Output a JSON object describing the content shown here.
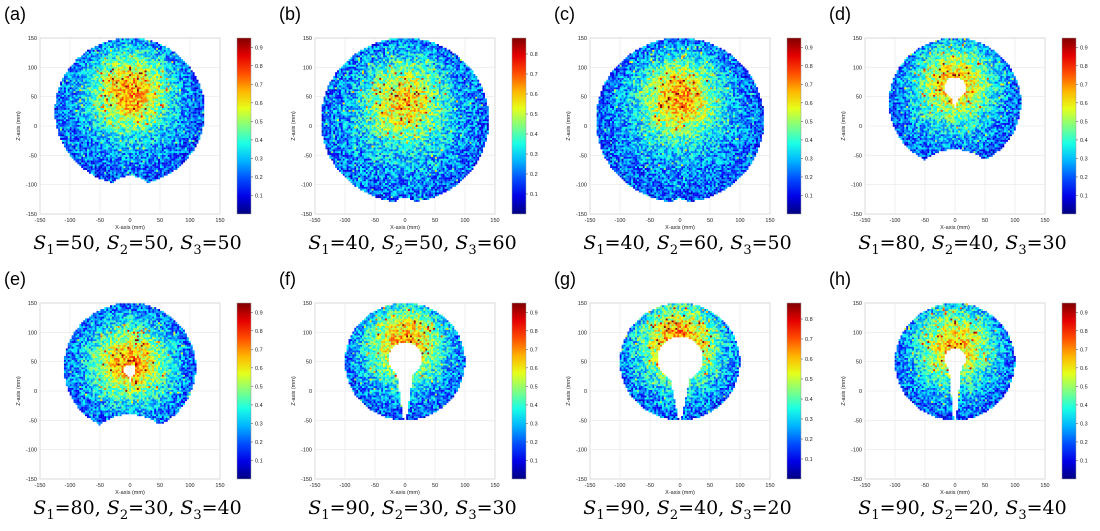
{
  "chart_data": [
    {
      "type": "heatmap",
      "panel": "(a)",
      "xlabel": "X-axis (mm)",
      "ylabel": "Z-axis (mm)",
      "xlim": [
        -150,
        150
      ],
      "ylim": [
        -150,
        150
      ],
      "xticks": [
        "-150",
        "-100",
        "-50",
        "0",
        "50",
        "100",
        "150"
      ],
      "yticks": [
        "150",
        "100",
        "50",
        "0",
        "-50",
        "-100",
        "-150"
      ],
      "colorbar_ticks": [
        "0.9",
        "0.8",
        "0.7",
        "0.6",
        "0.5",
        "0.4",
        "0.3",
        "0.2",
        "0.1"
      ],
      "colorbar_range": [
        0,
        0.95
      ],
      "caption": {
        "s1": "50",
        "s2": "50",
        "s3": "50"
      },
      "shape": {
        "outer_radius_mm": 125,
        "outer_center_z_mm": 25,
        "bottom_notch_mm": 15,
        "hole_radius_mm": 0,
        "hole_center_z_mm": 0,
        "slit": false
      },
      "hotspot": {
        "x_mm": 0,
        "z_mm": 65,
        "intensity": 0.85
      }
    },
    {
      "type": "heatmap",
      "panel": "(b)",
      "xlabel": "X-axis (mm)",
      "ylabel": "Z-axis (mm)",
      "xlim": [
        -150,
        150
      ],
      "ylim": [
        -150,
        150
      ],
      "xticks": [
        "-150",
        "-100",
        "-50",
        "0",
        "50",
        "100",
        "150"
      ],
      "yticks": [
        "150",
        "100",
        "50",
        "0",
        "-50",
        "-100",
        "-150"
      ],
      "colorbar_ticks": [
        "0.8",
        "0.7",
        "0.6",
        "0.5",
        "0.4",
        "0.3",
        "0.2",
        "0.1"
      ],
      "colorbar_range": [
        0,
        0.88
      ],
      "caption": {
        "s1": "40",
        "s2": "50",
        "s3": "60"
      },
      "shape": {
        "outer_radius_mm": 140,
        "outer_center_z_mm": 10,
        "bottom_notch_mm": 8,
        "hole_radius_mm": 0,
        "hole_center_z_mm": 0,
        "slit": false
      },
      "hotspot": {
        "x_mm": 0,
        "z_mm": 50,
        "intensity": 0.7
      }
    },
    {
      "type": "heatmap",
      "panel": "(c)",
      "xlabel": "X-axis (mm)",
      "ylabel": "Z-axis (mm)",
      "xlim": [
        -150,
        150
      ],
      "ylim": [
        -150,
        150
      ],
      "xticks": [
        "-150",
        "-100",
        "-50",
        "0",
        "50",
        "100",
        "150"
      ],
      "yticks": [
        "150",
        "100",
        "50",
        "0",
        "-50",
        "-100",
        "-150"
      ],
      "colorbar_ticks": [
        "0.9",
        "0.8",
        "0.7",
        "0.6",
        "0.5",
        "0.4",
        "0.3",
        "0.2",
        "0.1"
      ],
      "colorbar_range": [
        0,
        0.95
      ],
      "caption": {
        "s1": "40",
        "s2": "60",
        "s3": "50"
      },
      "shape": {
        "outer_radius_mm": 140,
        "outer_center_z_mm": 10,
        "bottom_notch_mm": 6,
        "hole_radius_mm": 0,
        "hole_center_z_mm": 0,
        "slit": false
      },
      "hotspot": {
        "x_mm": 0,
        "z_mm": 55,
        "intensity": 0.85
      }
    },
    {
      "type": "heatmap",
      "panel": "(d)",
      "xlabel": "X-axis (mm)",
      "ylabel": "Z-axis (mm)",
      "xlim": [
        -150,
        150
      ],
      "ylim": [
        -150,
        150
      ],
      "xticks": [
        "-150",
        "-100",
        "-50",
        "0",
        "50",
        "100",
        "150"
      ],
      "yticks": [
        "150",
        "100",
        "50",
        "0",
        "-50",
        "-100",
        "-150"
      ],
      "colorbar_ticks": [
        "0.9",
        "0.8",
        "0.7",
        "0.6",
        "0.5",
        "0.4",
        "0.3",
        "0.2",
        "0.1"
      ],
      "colorbar_range": [
        0,
        0.95
      ],
      "caption": {
        "s1": "80",
        "s2": "40",
        "s3": "30"
      },
      "shape": {
        "outer_radius_mm": 110,
        "outer_center_z_mm": 40,
        "bottom_notch_mm": 30,
        "hole_radius_mm": 18,
        "hole_center_z_mm": 65,
        "slit": false
      },
      "hotspot": {
        "x_mm": 0,
        "z_mm": 80,
        "intensity": 0.8
      }
    },
    {
      "type": "heatmap",
      "panel": "(e)",
      "xlabel": "X-axis (mm)",
      "ylabel": "Z-axis (mm)",
      "xlim": [
        -150,
        150
      ],
      "ylim": [
        -150,
        150
      ],
      "xticks": [
        "-150",
        "-100",
        "-50",
        "0",
        "50",
        "100",
        "150"
      ],
      "yticks": [
        "150",
        "100",
        "50",
        "0",
        "-50",
        "-100",
        "-150"
      ],
      "colorbar_ticks": [
        "0.9",
        "0.8",
        "0.7",
        "0.6",
        "0.5",
        "0.4",
        "0.3",
        "0.2",
        "0.1"
      ],
      "colorbar_range": [
        0,
        0.95
      ],
      "caption": {
        "s1": "80",
        "s2": "30",
        "s3": "40"
      },
      "shape": {
        "outer_radius_mm": 110,
        "outer_center_z_mm": 40,
        "bottom_notch_mm": 30,
        "hole_radius_mm": 10,
        "hole_center_z_mm": 35,
        "slit": false
      },
      "hotspot": {
        "x_mm": 0,
        "z_mm": 50,
        "intensity": 0.8
      }
    },
    {
      "type": "heatmap",
      "panel": "(f)",
      "xlabel": "X-axis (mm)",
      "ylabel": "Z-axis (mm)",
      "xlim": [
        -150,
        150
      ],
      "ylim": [
        -150,
        150
      ],
      "xticks": [
        "-150",
        "-100",
        "-50",
        "0",
        "50",
        "100",
        "150"
      ],
      "yticks": [
        "150",
        "100",
        "50",
        "0",
        "-50",
        "-100",
        "-150"
      ],
      "colorbar_ticks": [
        "0.9",
        "0.8",
        "0.7",
        "0.6",
        "0.5",
        "0.4",
        "0.3",
        "0.2",
        "0.1"
      ],
      "colorbar_range": [
        0,
        0.95
      ],
      "caption": {
        "s1": "90",
        "s2": "30",
        "s3": "30"
      },
      "shape": {
        "outer_radius_mm": 100,
        "outer_center_z_mm": 50,
        "bottom_notch_mm": 0,
        "hole_radius_mm": 28,
        "hole_center_z_mm": 55,
        "slit": true
      },
      "hotspot": {
        "x_mm": 0,
        "z_mm": 90,
        "intensity": 0.85
      }
    },
    {
      "type": "heatmap",
      "panel": "(g)",
      "xlabel": "X-axis (mm)",
      "ylabel": "Z-axis (mm)",
      "xlim": [
        -150,
        150
      ],
      "ylim": [
        -150,
        150
      ],
      "xticks": [
        "-150",
        "-100",
        "-50",
        "0",
        "50",
        "100",
        "150"
      ],
      "yticks": [
        "150",
        "100",
        "50",
        "0",
        "-50",
        "-100",
        "-150"
      ],
      "colorbar_ticks": [
        "0.8",
        "0.7",
        "0.6",
        "0.5",
        "0.4",
        "0.3",
        "0.2",
        "0.1"
      ],
      "colorbar_range": [
        0,
        0.88
      ],
      "caption": {
        "s1": "90",
        "s2": "40",
        "s3": "20"
      },
      "shape": {
        "outer_radius_mm": 100,
        "outer_center_z_mm": 50,
        "bottom_notch_mm": 0,
        "hole_radius_mm": 38,
        "hole_center_z_mm": 55,
        "slit": true
      },
      "hotspot": {
        "x_mm": 0,
        "z_mm": 90,
        "intensity": 0.85
      }
    },
    {
      "type": "heatmap",
      "panel": "(h)",
      "xlabel": "X-axis (mm)",
      "ylabel": "Z-axis (mm)",
      "xlim": [
        -150,
        150
      ],
      "ylim": [
        -150,
        150
      ],
      "xticks": [
        "-150",
        "-100",
        "-50",
        "0",
        "50",
        "100",
        "150"
      ],
      "yticks": [
        "150",
        "100",
        "50",
        "0",
        "-50",
        "-100",
        "-150"
      ],
      "colorbar_ticks": [
        "0.9",
        "0.8",
        "0.7",
        "0.6",
        "0.5",
        "0.4",
        "0.3",
        "0.2",
        "0.1"
      ],
      "colorbar_range": [
        0,
        0.95
      ],
      "caption": {
        "s1": "90",
        "s2": "20",
        "s3": "40"
      },
      "shape": {
        "outer_radius_mm": 100,
        "outer_center_z_mm": 50,
        "bottom_notch_mm": 0,
        "hole_radius_mm": 18,
        "hole_center_z_mm": 55,
        "slit": true
      },
      "hotspot": {
        "x_mm": 0,
        "z_mm": 85,
        "intensity": 0.8
      }
    }
  ]
}
